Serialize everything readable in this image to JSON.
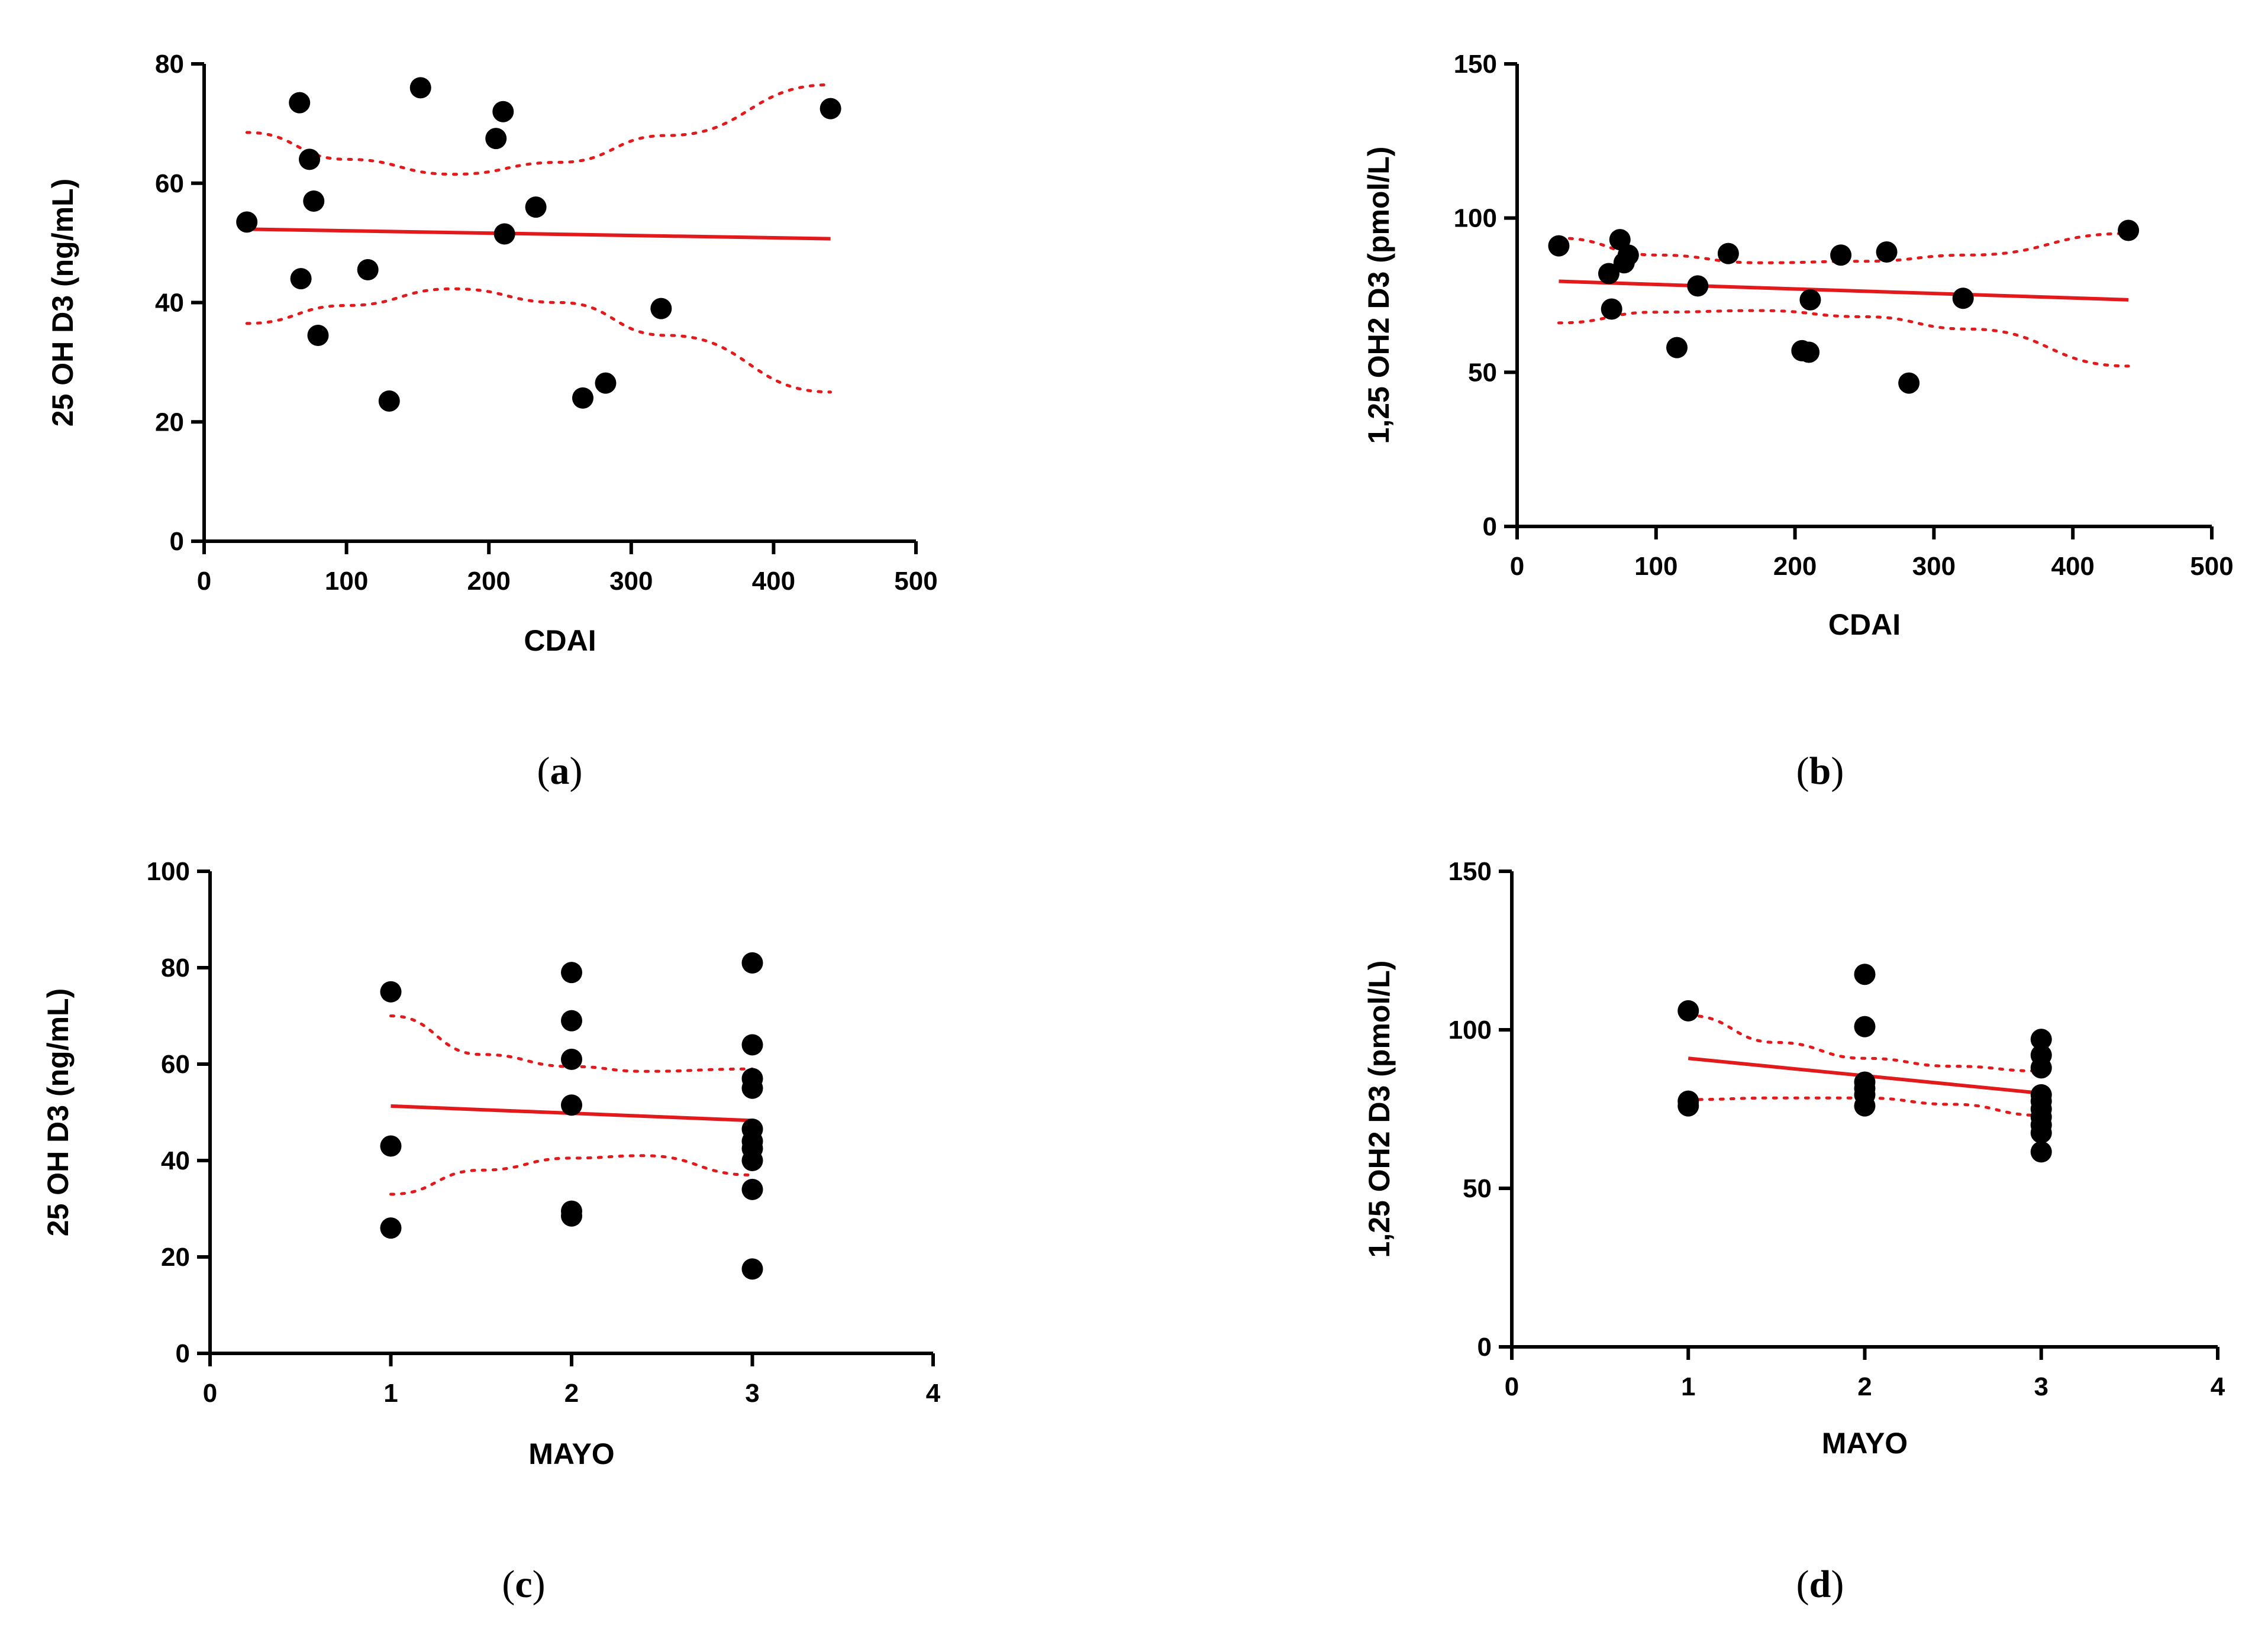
{
  "colors": {
    "points": "#000000",
    "fit": "#e31a1c",
    "axes": "#000000"
  },
  "chart_data": [
    {
      "type": "scatter",
      "panel": "(a)",
      "panel_letter": "a",
      "xlabel": "CDAI",
      "ylabel": "25 OH D3 (ng/mL)",
      "xlim": [
        0,
        500
      ],
      "ylim": [
        0,
        80
      ],
      "xticks": [
        0,
        100,
        200,
        300,
        400,
        500
      ],
      "yticks": [
        0,
        20,
        40,
        60,
        80
      ],
      "points": [
        [
          30,
          53.5
        ],
        [
          67,
          73.5
        ],
        [
          68,
          44
        ],
        [
          74,
          64
        ],
        [
          77,
          57
        ],
        [
          80,
          34.5
        ],
        [
          115,
          45.5
        ],
        [
          130,
          23.5
        ],
        [
          152,
          76
        ],
        [
          205,
          67.5
        ],
        [
          210,
          72
        ],
        [
          211,
          51.5
        ],
        [
          233,
          56
        ],
        [
          266,
          24
        ],
        [
          282,
          26.5
        ],
        [
          321,
          39
        ],
        [
          440,
          72.5
        ]
      ],
      "fit": {
        "x0": 30,
        "y0": 52.3,
        "x1": 440,
        "y1": 50.7
      },
      "ci_upper": [
        [
          30,
          68.5
        ],
        [
          100,
          64
        ],
        [
          175,
          61.5
        ],
        [
          250,
          63.5
        ],
        [
          325,
          68
        ],
        [
          440,
          76.5
        ]
      ],
      "ci_lower": [
        [
          30,
          36.5
        ],
        [
          100,
          39.5
        ],
        [
          175,
          42.3
        ],
        [
          250,
          40
        ],
        [
          325,
          34.5
        ],
        [
          440,
          25
        ]
      ]
    },
    {
      "type": "scatter",
      "panel": "(b)",
      "panel_letter": "b",
      "xlabel": "CDAI",
      "ylabel": "1,25 OH2 D3 (pmol/L)",
      "xlim": [
        0,
        500
      ],
      "ylim": [
        0,
        150
      ],
      "xticks": [
        0,
        100,
        200,
        300,
        400,
        500
      ],
      "yticks": [
        0,
        50,
        100,
        150
      ],
      "points": [
        [
          30,
          91
        ],
        [
          66,
          82
        ],
        [
          68,
          70.5
        ],
        [
          74,
          93
        ],
        [
          77,
          85.5
        ],
        [
          80,
          88
        ],
        [
          115,
          58
        ],
        [
          130,
          78
        ],
        [
          152,
          88.5
        ],
        [
          205,
          57
        ],
        [
          210,
          56.5
        ],
        [
          211,
          73.5
        ],
        [
          233,
          88
        ],
        [
          266,
          89
        ],
        [
          282,
          46.5
        ],
        [
          321,
          74
        ],
        [
          440,
          96
        ]
      ],
      "fit": {
        "x0": 30,
        "y0": 79.5,
        "x1": 440,
        "y1": 73.5
      },
      "ci_upper": [
        [
          30,
          93.5
        ],
        [
          100,
          88
        ],
        [
          175,
          85.5
        ],
        [
          250,
          86
        ],
        [
          325,
          88
        ],
        [
          440,
          95
        ]
      ],
      "ci_lower": [
        [
          30,
          66
        ],
        [
          100,
          69.5
        ],
        [
          175,
          70
        ],
        [
          250,
          68
        ],
        [
          325,
          64
        ],
        [
          440,
          52
        ]
      ]
    },
    {
      "type": "scatter",
      "panel": "(c)",
      "panel_letter": "c",
      "xlabel": "MAYO",
      "ylabel": "25 OH D3 (ng/mL)",
      "xlim": [
        0,
        4
      ],
      "ylim": [
        0,
        100
      ],
      "xticks": [
        0,
        1,
        2,
        3,
        4
      ],
      "yticks": [
        0,
        20,
        40,
        60,
        80,
        100
      ],
      "points": [
        [
          1,
          75
        ],
        [
          1,
          43
        ],
        [
          1,
          26
        ],
        [
          2,
          79
        ],
        [
          2,
          69
        ],
        [
          2,
          61
        ],
        [
          2,
          51.5
        ],
        [
          2,
          29.5
        ],
        [
          2,
          28.5
        ],
        [
          3,
          81
        ],
        [
          3,
          64
        ],
        [
          3,
          57
        ],
        [
          3,
          55
        ],
        [
          3,
          46.5
        ],
        [
          3,
          44
        ],
        [
          3,
          42.5
        ],
        [
          3,
          40
        ],
        [
          3,
          34
        ],
        [
          3,
          17.5
        ]
      ],
      "fit": {
        "x0": 1,
        "y0": 51.3,
        "x1": 3,
        "y1": 48.3
      },
      "ci_upper": [
        [
          1,
          70
        ],
        [
          1.5,
          62
        ],
        [
          2,
          59.5
        ],
        [
          2.4,
          58.5
        ],
        [
          3,
          59
        ]
      ],
      "ci_lower": [
        [
          1,
          33
        ],
        [
          1.5,
          38
        ],
        [
          2,
          40.5
        ],
        [
          2.4,
          41
        ],
        [
          3,
          37
        ]
      ]
    },
    {
      "type": "scatter",
      "panel": "(d)",
      "panel_letter": "d",
      "xlabel": "MAYO",
      "ylabel": "1,25 OH2 D3 (pmol/L)",
      "xlim": [
        0,
        4
      ],
      "ylim": [
        0,
        150
      ],
      "xticks": [
        0,
        1,
        2,
        3,
        4
      ],
      "yticks": [
        0,
        50,
        100,
        150
      ],
      "points": [
        [
          1,
          106
        ],
        [
          1,
          77.5
        ],
        [
          1,
          76
        ],
        [
          2,
          117.5
        ],
        [
          2,
          101
        ],
        [
          2,
          83.5
        ],
        [
          2,
          81.5
        ],
        [
          2,
          79.5
        ],
        [
          2,
          76
        ],
        [
          3,
          97
        ],
        [
          3,
          92
        ],
        [
          3,
          88
        ],
        [
          3,
          79.5
        ],
        [
          3,
          77.5
        ],
        [
          3,
          75
        ],
        [
          3,
          72.5
        ],
        [
          3,
          70
        ],
        [
          3,
          67.5
        ],
        [
          3,
          61.5
        ]
      ],
      "fit": {
        "x0": 1,
        "y0": 91,
        "x1": 3,
        "y1": 80
      },
      "ci_upper": [
        [
          1,
          104.5
        ],
        [
          1.5,
          96
        ],
        [
          2,
          91
        ],
        [
          2.5,
          88.5
        ],
        [
          3,
          87
        ]
      ],
      "ci_lower": [
        [
          1,
          78
        ],
        [
          1.5,
          78.5
        ],
        [
          2,
          78.5
        ],
        [
          2.5,
          76.5
        ],
        [
          3,
          73
        ]
      ]
    }
  ]
}
